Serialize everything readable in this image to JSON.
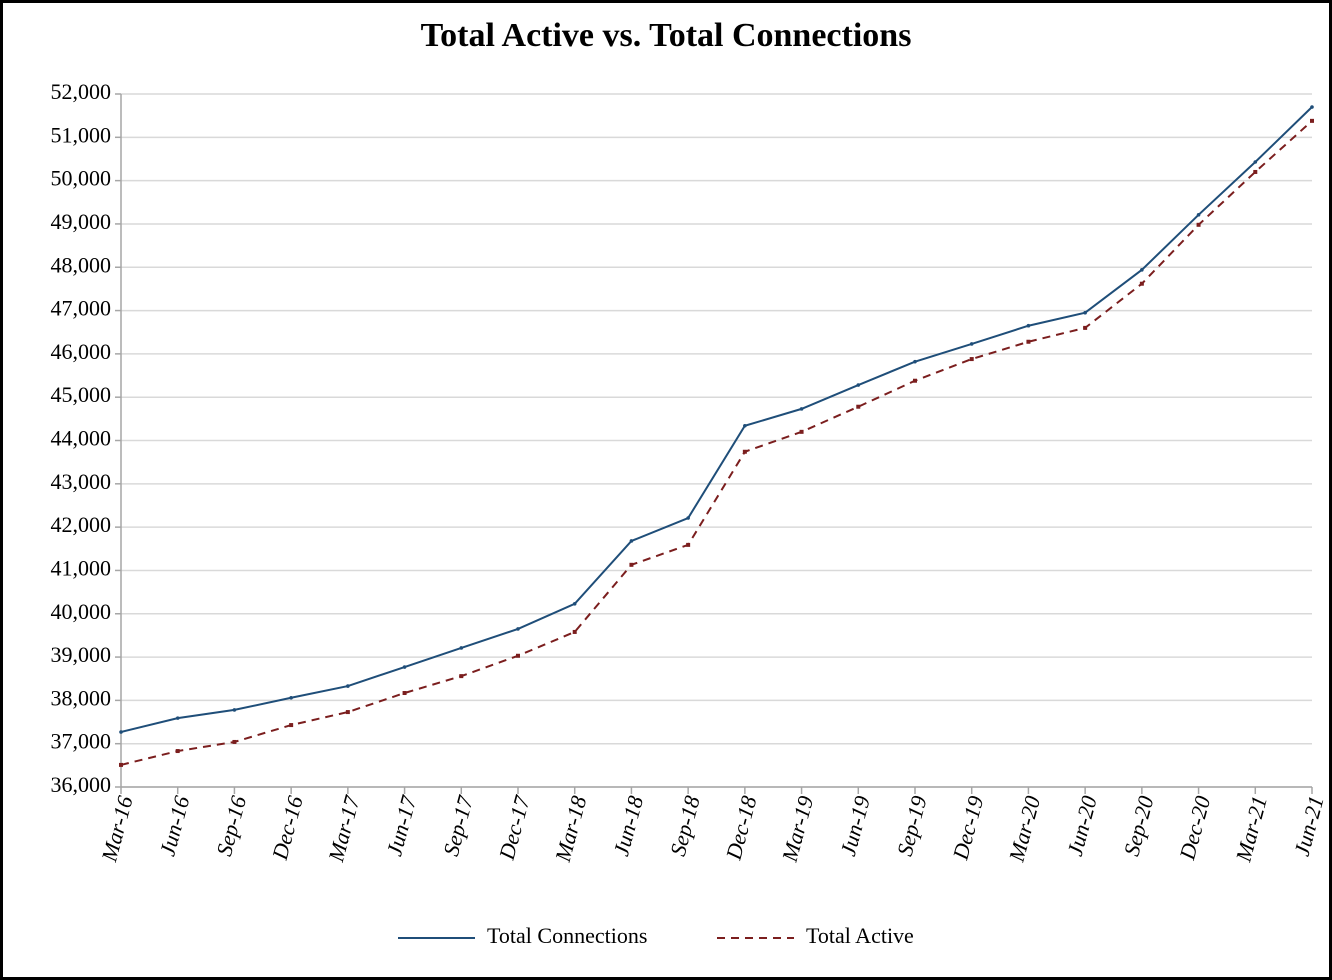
{
  "chart_data": {
    "type": "line",
    "title": "Total Active vs. Total Connections",
    "categories": [
      "Mar-16",
      "Jun-16",
      "Sep-16",
      "Dec-16",
      "Mar-17",
      "Jun-17",
      "Sep-17",
      "Dec-17",
      "Mar-18",
      "Jun-18",
      "Sep-18",
      "Dec-18",
      "Mar-19",
      "Jun-19",
      "Sep-19",
      "Dec-19",
      "Mar-20",
      "Jun-20",
      "Sep-20",
      "Dec-20",
      "Mar-21",
      "Jun-21"
    ],
    "series": [
      {
        "name": "Total Connections",
        "color": "#1f4e79",
        "dash": false,
        "values": [
          37270,
          37590,
          37780,
          38060,
          38330,
          38770,
          39210,
          39650,
          40230,
          41680,
          42210,
          44340,
          44730,
          45280,
          45820,
          46230,
          46650,
          46950,
          47940,
          49210,
          50430,
          51700
        ]
      },
      {
        "name": "Total Active",
        "color": "#7b1e1e",
        "dash": true,
        "values": [
          36510,
          36830,
          37040,
          37430,
          37730,
          38170,
          38560,
          39030,
          39580,
          41130,
          41590,
          43740,
          44200,
          44780,
          45380,
          45880,
          46280,
          46600,
          47620,
          48980,
          50200,
          51380
        ]
      }
    ],
    "ylim": [
      36000,
      52000
    ],
    "yticks": [
      {
        "value": 36000,
        "label": "36,000"
      },
      {
        "value": 37000,
        "label": "37,000"
      },
      {
        "value": 38000,
        "label": "38,000"
      },
      {
        "value": 39000,
        "label": "39,000"
      },
      {
        "value": 40000,
        "label": "40,000"
      },
      {
        "value": 41000,
        "label": "41,000"
      },
      {
        "value": 42000,
        "label": "42,000"
      },
      {
        "value": 43000,
        "label": "43,000"
      },
      {
        "value": 44000,
        "label": "44,000"
      },
      {
        "value": 45000,
        "label": "45,000"
      },
      {
        "value": 46000,
        "label": "46,000"
      },
      {
        "value": 47000,
        "label": "47,000"
      },
      {
        "value": 48000,
        "label": "48,000"
      },
      {
        "value": 49000,
        "label": "49,000"
      },
      {
        "value": 50000,
        "label": "50,000"
      },
      {
        "value": 51000,
        "label": "51,000"
      },
      {
        "value": 52000,
        "label": "52,000"
      }
    ],
    "grid": true,
    "legend": "bottom"
  }
}
